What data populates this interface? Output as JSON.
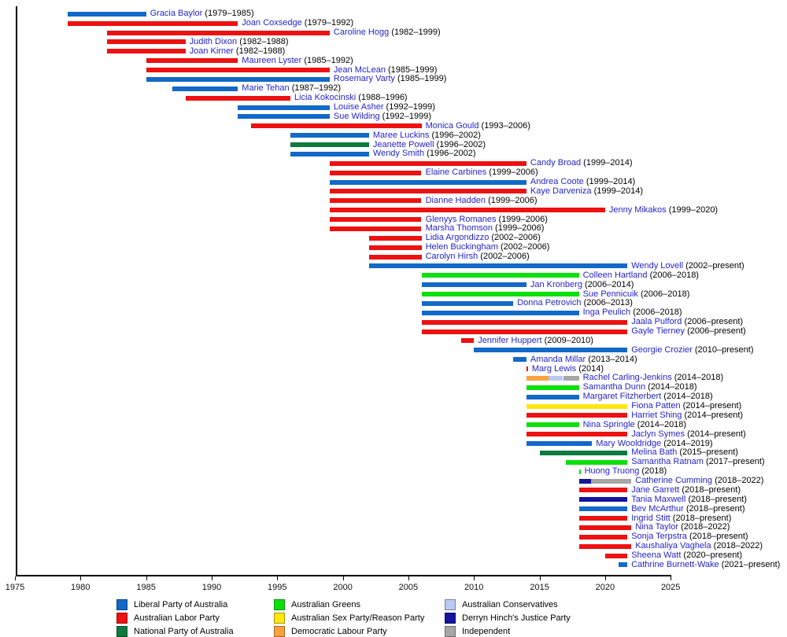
{
  "chart_data": {
    "type": "bar",
    "subtype": "gantt-timeline",
    "title": "",
    "xlabel": "",
    "ylabel": "",
    "x_axis": {
      "min": 1975,
      "max": 2025,
      "tick_step": 5,
      "tick_labels": [
        "1975",
        "1980",
        "1985",
        "1990",
        "1995",
        "2000",
        "2005",
        "2010",
        "2015",
        "2020",
        "2025"
      ]
    },
    "present_plotted_as": 2021.7,
    "grid": false,
    "legend_position": "bottom",
    "parties": {
      "liberal": {
        "label": "Liberal Party of Australia",
        "color": "#1269c8"
      },
      "labor": {
        "label": "Australian Labor Party",
        "color": "#ed1111"
      },
      "national": {
        "label": "National Party of Australia",
        "color": "#0d7a3f"
      },
      "greens": {
        "label": "Australian Greens",
        "color": "#0ce00c"
      },
      "reason": {
        "label": "Australian Sex Party/Reason Party",
        "color": "#ffe70d"
      },
      "dlp": {
        "label": "Democratic Labour Party",
        "color": "#f9a23b"
      },
      "conservatives": {
        "label": "Australian Conservatives",
        "color": "#b9c9f0"
      },
      "hinch": {
        "label": "Derryn Hinch's Justice Party",
        "color": "#14149e"
      },
      "independent": {
        "label": "Independent",
        "color": "#a6a6a6"
      }
    },
    "members": [
      {
        "name": "Gracia Baylor",
        "dates": "(1979–1985)",
        "party": "liberal",
        "start": 1979,
        "end": 1985
      },
      {
        "name": "Joan Coxsedge",
        "dates": "(1979–1992)",
        "party": "labor",
        "start": 1979,
        "end": 1992
      },
      {
        "name": "Caroline Hogg",
        "dates": "(1982–1999)",
        "party": "labor",
        "start": 1982,
        "end": 1999
      },
      {
        "name": "Judith Dixon",
        "dates": "(1982–1988)",
        "party": "labor",
        "start": 1982,
        "end": 1988
      },
      {
        "name": "Joan Kirner",
        "dates": "(1982–1988)",
        "party": "labor",
        "start": 1982,
        "end": 1988
      },
      {
        "name": "Maureen Lyster",
        "dates": "(1985–1992)",
        "party": "labor",
        "start": 1985,
        "end": 1992
      },
      {
        "name": "Jean McLean",
        "dates": "(1985–1999)",
        "party": "labor",
        "start": 1985,
        "end": 1999
      },
      {
        "name": "Rosemary Varty",
        "dates": "(1985–1999)",
        "party": "liberal",
        "start": 1985,
        "end": 1999
      },
      {
        "name": "Marie Tehan",
        "dates": "(1987–1992)",
        "party": "liberal",
        "start": 1987,
        "end": 1992
      },
      {
        "name": "Licia Kokocinski",
        "dates": "(1988–1996)",
        "party": "labor",
        "start": 1988,
        "end": 1996
      },
      {
        "name": "Louise Asher",
        "dates": "(1992–1999)",
        "party": "liberal",
        "start": 1992,
        "end": 1999
      },
      {
        "name": "Sue Wilding",
        "dates": "(1992–1999)",
        "party": "liberal",
        "start": 1992,
        "end": 1999
      },
      {
        "name": "Monica Gould",
        "dates": "(1993–2006)",
        "party": "labor",
        "start": 1993,
        "end": 2006
      },
      {
        "name": "Maree Luckins",
        "dates": "(1996–2002)",
        "party": "liberal",
        "start": 1996,
        "end": 2002
      },
      {
        "name": "Jeanette Powell",
        "dates": "(1996–2002)",
        "party": "national",
        "start": 1996,
        "end": 2002
      },
      {
        "name": "Wendy Smith",
        "dates": "(1996–2002)",
        "party": "liberal",
        "start": 1996,
        "end": 2002
      },
      {
        "name": "Candy Broad",
        "dates": "(1999–2014)",
        "party": "labor",
        "start": 1999,
        "end": 2014
      },
      {
        "name": "Elaine Carbines",
        "dates": "(1999–2006)",
        "party": "labor",
        "start": 1999,
        "end": 2006
      },
      {
        "name": "Andrea Coote",
        "dates": "(1999–2014)",
        "party": "liberal",
        "start": 1999,
        "end": 2014
      },
      {
        "name": "Kaye Darveniza",
        "dates": "(1999–2014)",
        "party": "labor",
        "start": 1999,
        "end": 2014
      },
      {
        "name": "Dianne Hadden",
        "dates": "(1999–2006)",
        "party": "labor",
        "start": 1999,
        "end": 2006
      },
      {
        "name": "Jenny Mikakos",
        "dates": "(1999–2020)",
        "party": "labor",
        "start": 1999,
        "end": 2020
      },
      {
        "name": "Glenyys Romanes",
        "dates": "(1999–2006)",
        "party": "labor",
        "start": 1999,
        "end": 2006
      },
      {
        "name": "Marsha Thomson",
        "dates": "(1999–2006)",
        "party": "labor",
        "start": 1999,
        "end": 2006
      },
      {
        "name": "Lidia Argondizzo",
        "dates": "(2002–2006)",
        "party": "labor",
        "start": 2002,
        "end": 2006
      },
      {
        "name": "Helen Buckingham",
        "dates": "(2002–2006)",
        "party": "labor",
        "start": 2002,
        "end": 2006
      },
      {
        "name": "Carolyn Hirsh",
        "dates": "(2002–2006)",
        "party": "labor",
        "start": 2002,
        "end": 2006
      },
      {
        "name": "Wendy Lovell",
        "dates": "(2002–present)",
        "party": "liberal",
        "start": 2002,
        "end": "present"
      },
      {
        "name": "Colleen Hartland",
        "dates": "(2006–2018)",
        "party": "greens",
        "start": 2006,
        "end": 2018
      },
      {
        "name": "Jan Kronberg",
        "dates": "(2006–2014)",
        "party": "liberal",
        "start": 2006,
        "end": 2014
      },
      {
        "name": "Sue Pennicuik",
        "dates": "(2006–2018)",
        "party": "greens",
        "start": 2006,
        "end": 2018
      },
      {
        "name": "Donna Petrovich",
        "dates": "(2006–2013)",
        "party": "liberal",
        "start": 2006,
        "end": 2013
      },
      {
        "name": "Inga Peulich",
        "dates": "(2006–2018)",
        "party": "liberal",
        "start": 2006,
        "end": 2018
      },
      {
        "name": "Jaala Pulford",
        "dates": "(2006–present)",
        "party": "labor",
        "start": 2006,
        "end": "present"
      },
      {
        "name": "Gayle Tierney",
        "dates": "(2006–present)",
        "party": "labor",
        "start": 2006,
        "end": "present"
      },
      {
        "name": "Jennifer Huppert",
        "dates": "(2009–2010)",
        "party": "labor",
        "start": 2009,
        "end": 2010
      },
      {
        "name": "Georgie Crozier",
        "dates": "(2010–present)",
        "party": "liberal",
        "start": 2010,
        "end": "present"
      },
      {
        "name": "Amanda Millar",
        "dates": "(2013–2014)",
        "party": "liberal",
        "start": 2013,
        "end": 2014
      },
      {
        "name": "Marg Lewis",
        "dates": "(2014)",
        "party": "labor",
        "start": 2014,
        "end": 2014.12
      },
      {
        "name": "Rachel Carling-Jenkins",
        "dates": "(2014–2018)",
        "party": "dlp",
        "start": 2014,
        "end": 2018,
        "segments": [
          {
            "party": "dlp",
            "start": 2014,
            "end": 2015.7
          },
          {
            "party": "conservatives",
            "start": 2015.7,
            "end": 2016.8
          },
          {
            "party": "independent",
            "start": 2016.8,
            "end": 2018
          }
        ]
      },
      {
        "name": "Samantha Dunn",
        "dates": "(2014–2018)",
        "party": "greens",
        "start": 2014,
        "end": 2018
      },
      {
        "name": "Margaret Fitzherbert",
        "dates": "(2014–2018)",
        "party": "liberal",
        "start": 2014,
        "end": 2018
      },
      {
        "name": "Fiona Patten",
        "dates": "(2014–present)",
        "party": "reason",
        "start": 2014,
        "end": "present"
      },
      {
        "name": "Harriet Shing",
        "dates": "(2014–present)",
        "party": "labor",
        "start": 2014,
        "end": "present"
      },
      {
        "name": "Nina Springle",
        "dates": "(2014–2018)",
        "party": "greens",
        "start": 2014,
        "end": 2018
      },
      {
        "name": "Jaclyn Symes",
        "dates": "(2014–present)",
        "party": "labor",
        "start": 2014,
        "end": "present"
      },
      {
        "name": "Mary Wooldridge",
        "dates": "(2014–2019)",
        "party": "liberal",
        "start": 2014,
        "end": 2019
      },
      {
        "name": "Melina Bath",
        "dates": "(2015–present)",
        "party": "national",
        "start": 2015,
        "end": "present"
      },
      {
        "name": "Samantha Ratnam",
        "dates": "(2017–present)",
        "party": "greens",
        "start": 2017,
        "end": "present"
      },
      {
        "name": "Huong Truong",
        "dates": "(2018)",
        "party": "greens",
        "start": 2018,
        "end": 2018.12
      },
      {
        "name": "Catherine Cumming",
        "dates": "(2018–2022)",
        "party": "hinch",
        "start": 2018,
        "end": 2022,
        "segments": [
          {
            "party": "hinch",
            "start": 2018,
            "end": 2018.9
          },
          {
            "party": "independent",
            "start": 2018.9,
            "end": 2022
          }
        ]
      },
      {
        "name": "Jane Garrett",
        "dates": "(2018–present)",
        "party": "labor",
        "start": 2018,
        "end": "present"
      },
      {
        "name": "Tania Maxwell",
        "dates": "(2018–present)",
        "party": "hinch",
        "start": 2018,
        "end": "present"
      },
      {
        "name": "Bev McArthur",
        "dates": "(2018–present)",
        "party": "liberal",
        "start": 2018,
        "end": "present"
      },
      {
        "name": "Ingrid Stitt",
        "dates": "(2018–present)",
        "party": "labor",
        "start": 2018,
        "end": "present"
      },
      {
        "name": "Nina Taylor",
        "dates": "(2018–2022)",
        "party": "labor",
        "start": 2018,
        "end": 2022
      },
      {
        "name": "Sonja Terpstra",
        "dates": "(2018–present)",
        "party": "labor",
        "start": 2018,
        "end": "present"
      },
      {
        "name": "Kaushaliya Vaghela",
        "dates": "(2018–2022)",
        "party": "labor",
        "start": 2018,
        "end": 2022
      },
      {
        "name": "Sheena Watt",
        "dates": "(2020–present)",
        "party": "labor",
        "start": 2020,
        "end": "present"
      },
      {
        "name": "Cathrine Burnett-Wake",
        "dates": "(2021–present)",
        "party": "liberal",
        "start": 2021,
        "end": "present"
      }
    ]
  },
  "legend": {
    "columns": [
      {
        "items": [
          {
            "party": "liberal",
            "label": "Liberal Party of Australia"
          },
          {
            "party": "labor",
            "label": "Australian Labor Party"
          },
          {
            "party": "national",
            "label": "National Party of Australia"
          }
        ]
      },
      {
        "items": [
          {
            "party": "greens",
            "label": "Australian Greens"
          },
          {
            "party": "reason",
            "label": "Australian Sex Party/Reason Party"
          },
          {
            "party": "dlp",
            "label": "Democratic Labour Party"
          }
        ]
      },
      {
        "items": [
          {
            "party": "conservatives",
            "label": "Australian Conservatives"
          },
          {
            "party": "hinch",
            "label": "Derryn Hinch's Justice Party"
          },
          {
            "party": "independent",
            "label": "Independent"
          }
        ]
      }
    ]
  }
}
